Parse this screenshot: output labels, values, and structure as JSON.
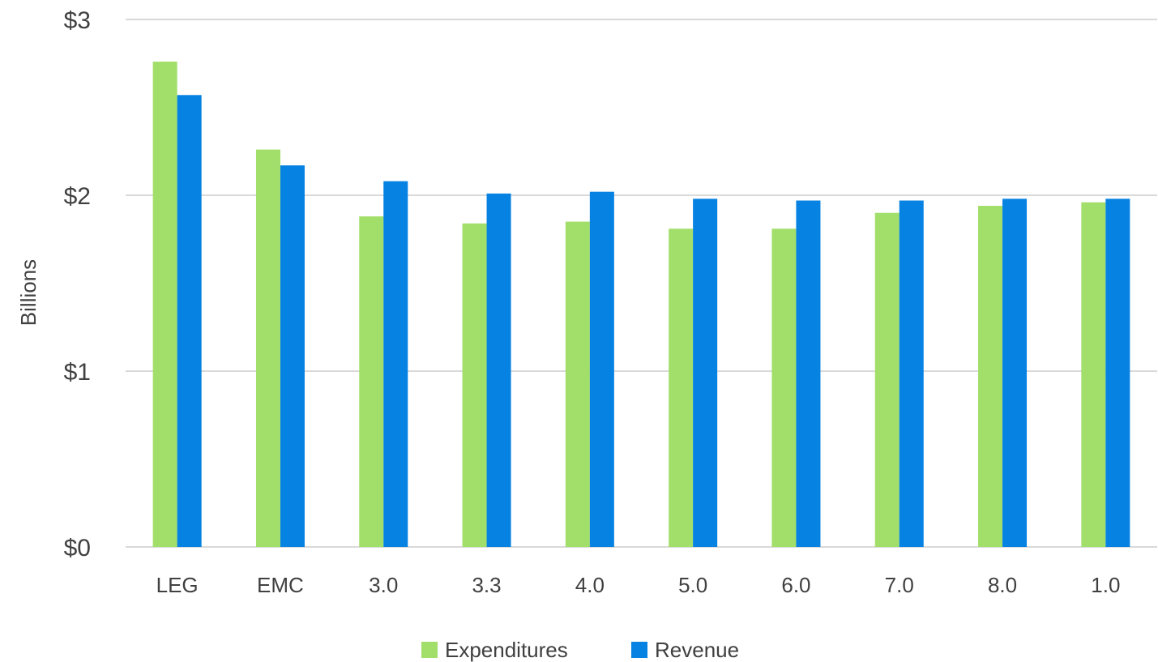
{
  "chart_data": {
    "type": "bar",
    "title": "",
    "xlabel": "",
    "ylabel": "Billions",
    "ylim": [
      0,
      3
    ],
    "y_ticks": [
      0,
      1,
      2,
      3
    ],
    "y_tick_labels": [
      "$0",
      "$1",
      "$2",
      "$3"
    ],
    "grid": true,
    "legend_position": "bottom",
    "categories": [
      "LEG",
      "EMC",
      "3.0",
      "3.3",
      "4.0",
      "5.0",
      "6.0",
      "7.0",
      "8.0",
      "1.0"
    ],
    "series": [
      {
        "name": "Expenditures",
        "color": "#a2df6a",
        "values": [
          2.76,
          2.26,
          1.88,
          1.84,
          1.85,
          1.81,
          1.81,
          1.9,
          1.94,
          1.96
        ]
      },
      {
        "name": "Revenue",
        "color": "#0582e2",
        "values": [
          2.57,
          2.17,
          2.08,
          2.01,
          2.02,
          1.98,
          1.97,
          1.97,
          1.98,
          1.98
        ]
      }
    ]
  }
}
